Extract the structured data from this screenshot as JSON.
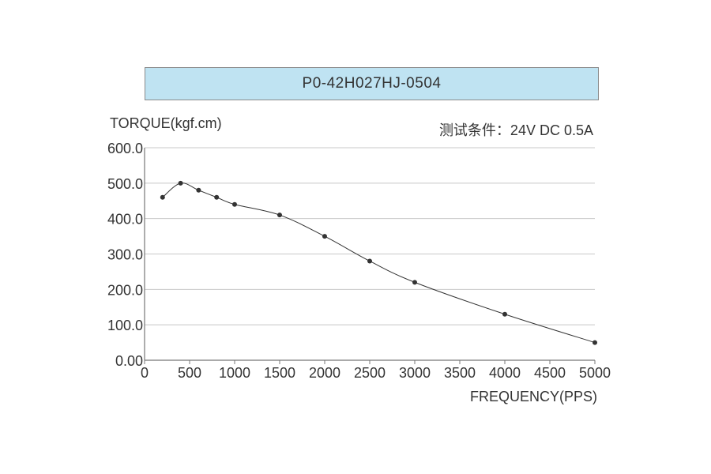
{
  "chart_data": {
    "type": "line",
    "title": "P0-42H027HJ-0504",
    "ylabel": "TORQUE(kgf.cm)",
    "xlabel": "FREQUENCY(PPS)",
    "condition": "测试条件：24V DC   0.5A",
    "xlim": [
      0,
      5000
    ],
    "ylim": [
      0,
      600
    ],
    "x_ticks": [
      0,
      500,
      1000,
      1500,
      2000,
      2500,
      3000,
      3500,
      4000,
      4500,
      5000
    ],
    "x_tick_labels": [
      "0",
      "500",
      "1000",
      "1500",
      "2000",
      "2500",
      "3000",
      "3500",
      "4000",
      "4500",
      "5000"
    ],
    "y_ticks": [
      0,
      100,
      200,
      300,
      400,
      500,
      600
    ],
    "y_tick_labels": [
      "0.00",
      "100.0",
      "200.0",
      "300.0",
      "400.0",
      "500.0",
      "600.0"
    ],
    "grid": true,
    "series": [
      {
        "x": [
          200,
          400,
          600,
          800,
          1000,
          1500,
          2000,
          2500,
          3000,
          4000,
          5000
        ],
        "values": [
          460,
          500,
          480,
          460,
          440,
          410,
          350,
          280,
          220,
          130,
          50
        ],
        "color": "#333333"
      }
    ]
  }
}
